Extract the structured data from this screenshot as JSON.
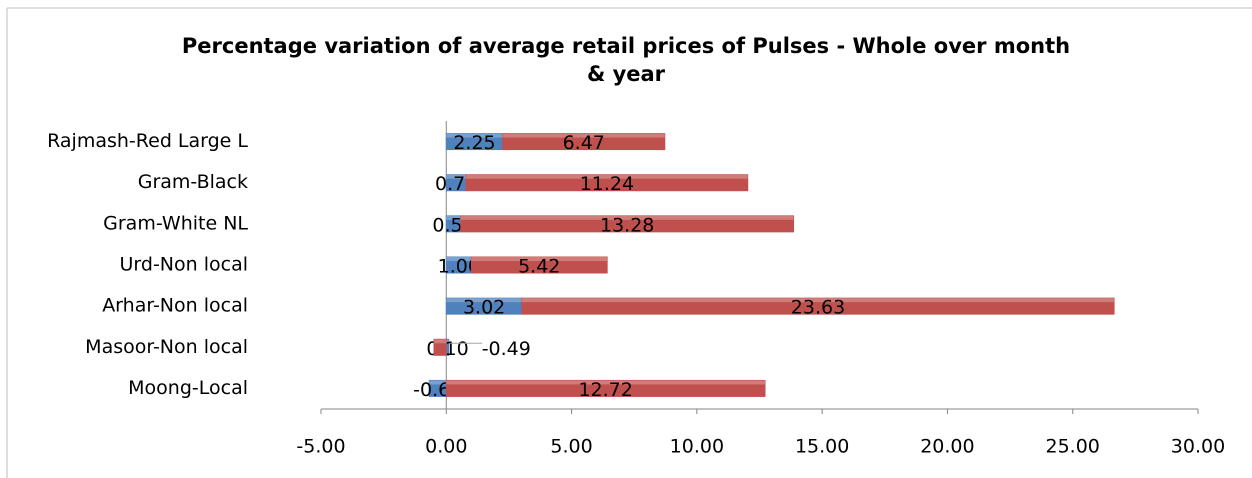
{
  "chart_data": {
    "type": "stacked_barh",
    "title": "Percentage variation  of average retail prices of Pulses - Whole over month & year",
    "categories": [
      "Moong-Local",
      "Masoor-Non local",
      "Arhar-Non local",
      "Urd-Non local",
      "Gram-White NL",
      "Gram-Black",
      "Rajmash-Red Large L"
    ],
    "series": [
      {
        "color": "#4f81bd",
        "values": [
          -0.68,
          0.1,
          3.02,
          1.0,
          0.58,
          0.79,
          2.25
        ],
        "value_labels": [
          "-0.68",
          "0.10",
          "3.02",
          "1.00",
          "0.58",
          "0.79",
          "2.25"
        ]
      },
      {
        "color": "#c0504d",
        "values": [
          12.72,
          -0.49,
          23.63,
          5.42,
          13.28,
          11.24,
          6.47
        ],
        "value_labels": [
          "12.72",
          "-0.49",
          "23.63",
          "5.42",
          "13.28",
          "11.24",
          "6.47"
        ]
      }
    ],
    "xlim": [
      -5,
      30
    ],
    "xticks": [
      {
        "value": -5,
        "label": "-5.00"
      },
      {
        "value": 0,
        "label": "0.00"
      },
      {
        "value": 5,
        "label": "5.00"
      },
      {
        "value": 10,
        "label": "10.00"
      },
      {
        "value": 15,
        "label": "15.00"
      },
      {
        "value": 20,
        "label": "20.00"
      },
      {
        "value": 25,
        "label": "25.00"
      },
      {
        "value": 30,
        "label": "30.00"
      }
    ]
  }
}
